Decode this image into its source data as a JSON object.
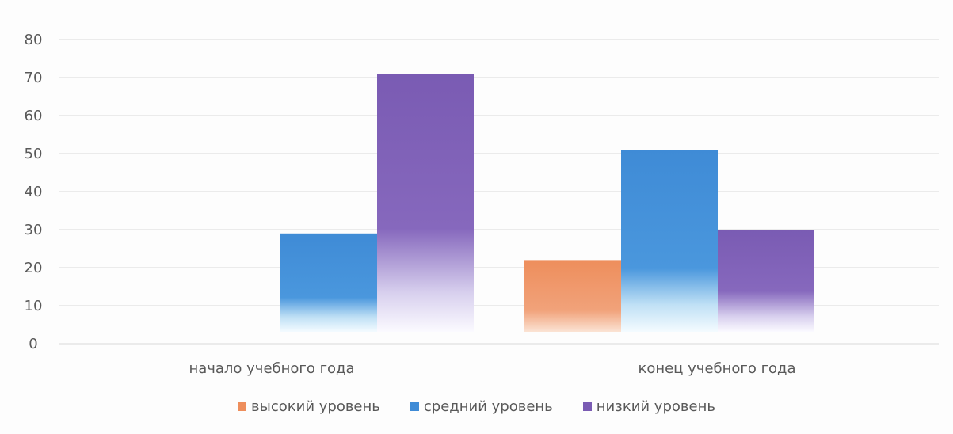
{
  "colors": {
    "high": "#ee8e5c",
    "medium": "#3f8bd6",
    "low": "#7a5bb3",
    "grid": "#d9d9d9",
    "text": "#595959"
  },
  "chart_data": {
    "type": "bar",
    "title": "",
    "xlabel": "",
    "ylabel": "",
    "categories": [
      "начало учебного года",
      "конец учебного года"
    ],
    "series": [
      {
        "name": "высокий уровень",
        "values": [
          0,
          22
        ]
      },
      {
        "name": "средний уровень",
        "values": [
          29,
          51
        ]
      },
      {
        "name": "низкий уровень",
        "values": [
          71,
          30
        ]
      }
    ],
    "ylim": [
      0,
      80
    ],
    "yticks": [
      "0",
      "10",
      "20",
      "30",
      "40",
      "50",
      "60",
      "70",
      "80"
    ],
    "grid": true,
    "legend_position": "bottom"
  }
}
